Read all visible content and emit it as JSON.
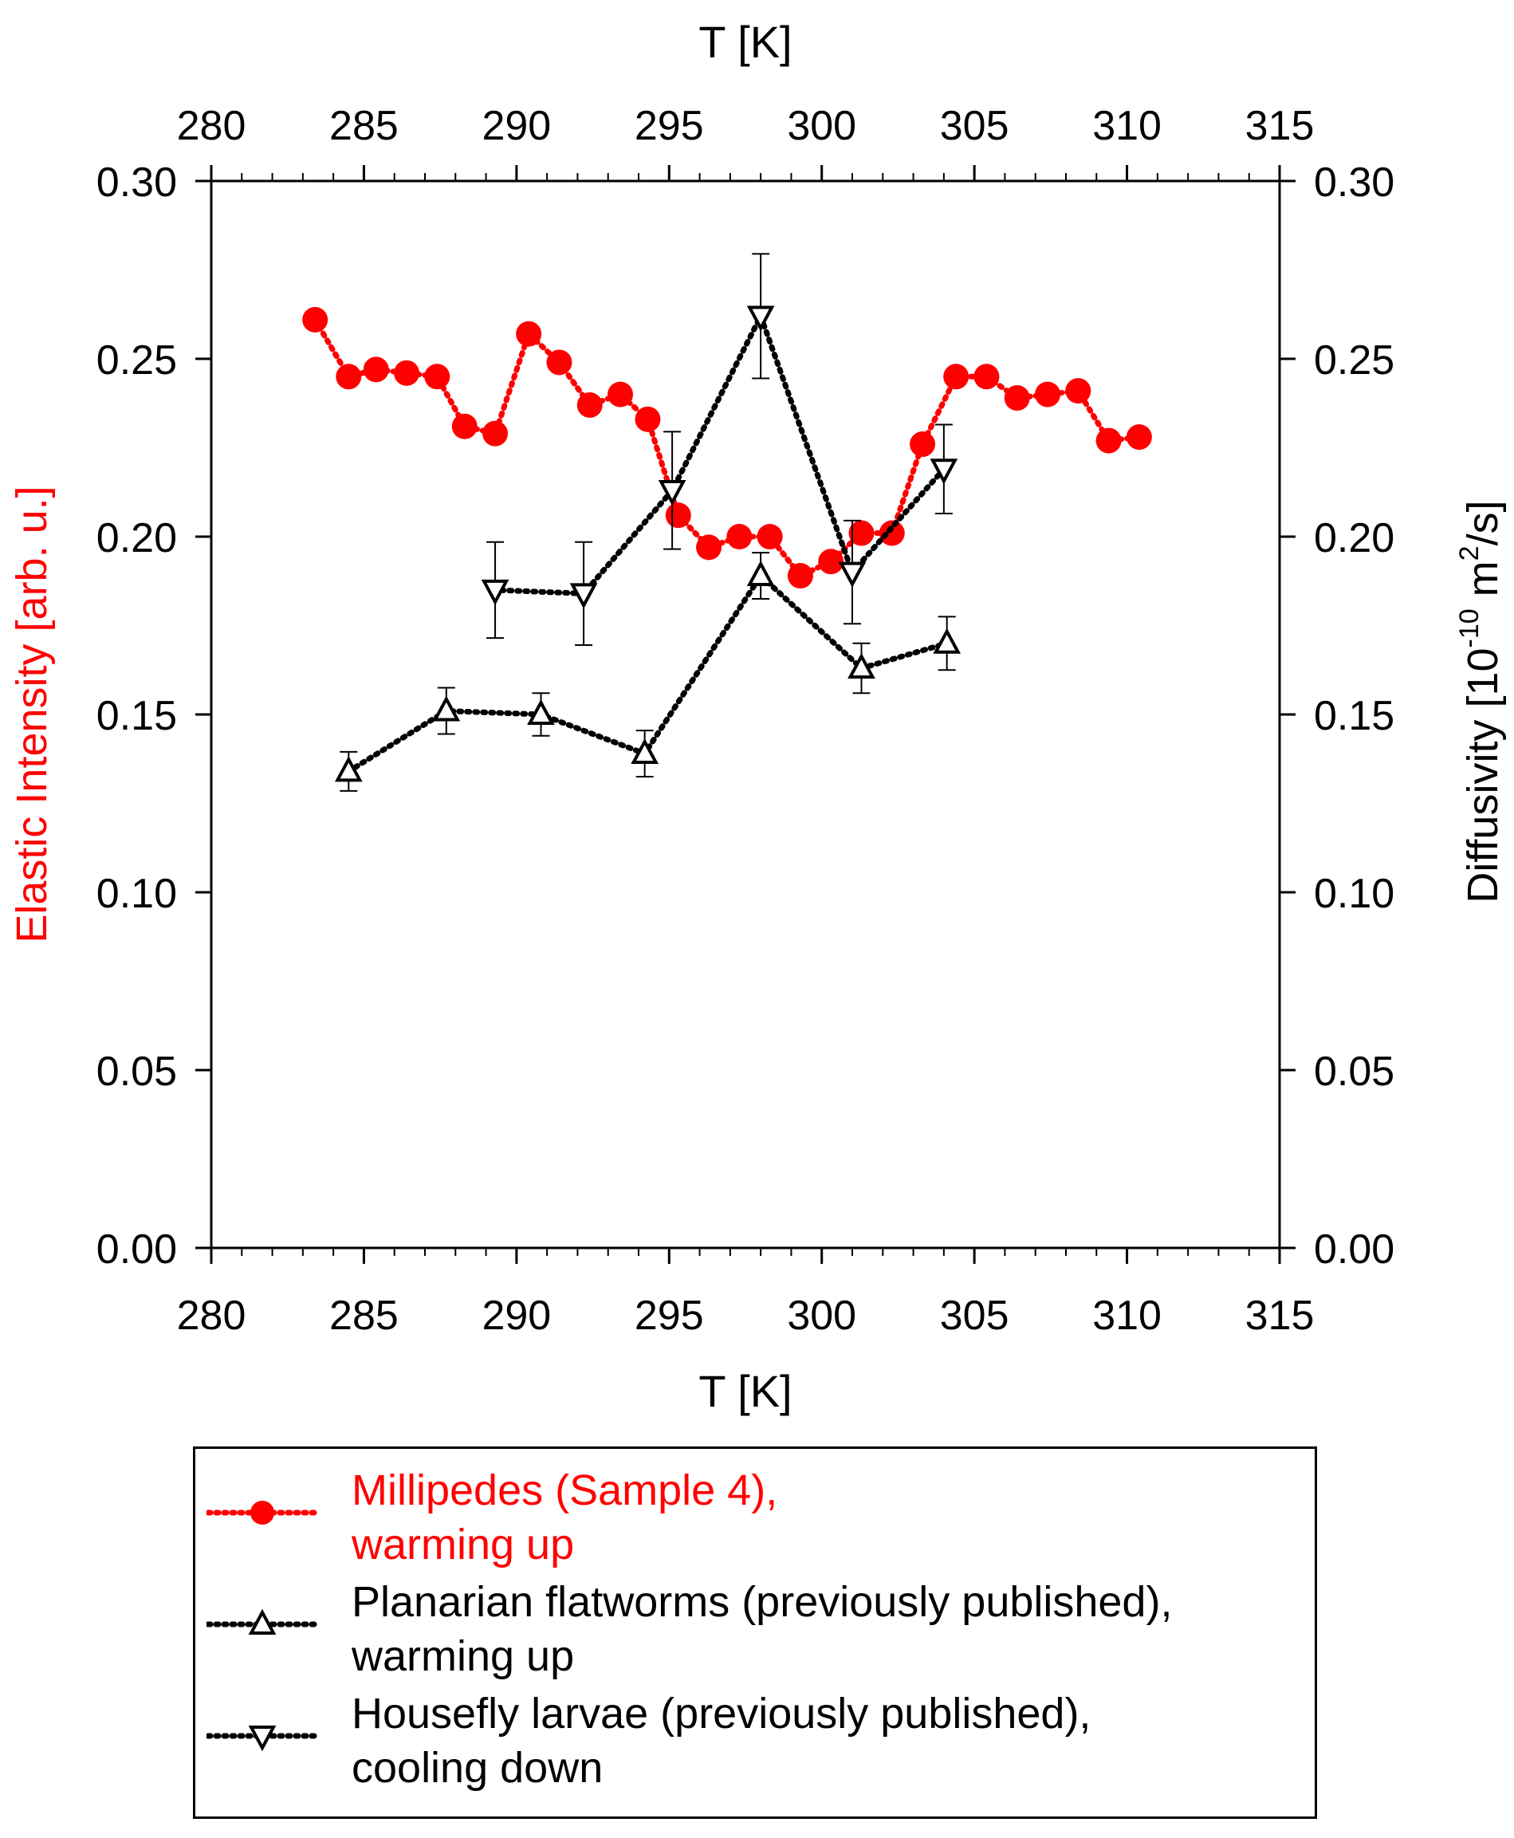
{
  "chart_data": {
    "type": "scatter",
    "x_axis": {
      "label": "T [K]",
      "range": [
        280,
        315
      ],
      "ticks": [
        280,
        285,
        290,
        295,
        300,
        305,
        310,
        315
      ]
    },
    "x2_axis": {
      "label": "T [K]",
      "range": [
        280,
        315
      ],
      "ticks": [
        280,
        285,
        290,
        295,
        300,
        305,
        310,
        315
      ]
    },
    "y_axis": {
      "label": "Elastic Intensity [arb. u.]",
      "color": "#ff0000",
      "range": [
        0,
        0.3
      ],
      "ticks": [
        "0.00",
        "0.05",
        "0.10",
        "0.15",
        "0.20",
        "0.25",
        "0.30"
      ]
    },
    "y2_axis": {
      "label_parts": [
        "Diffusivity [10",
        "-10",
        " m",
        "2",
        "/s]"
      ],
      "range": [
        0,
        0.3
      ],
      "ticks": [
        "0.00",
        "0.05",
        "0.10",
        "0.15",
        "0.20",
        "0.25",
        "0.30"
      ]
    },
    "series": [
      {
        "name": "Millipedes (Sample 4), warming up",
        "legend_lines": [
          "Millipedes (Sample 4),",
          "warming up"
        ],
        "color": "#ff0000",
        "marker": "filled-circle",
        "line": "dotted",
        "axis": "left",
        "connect_order": "sequential",
        "x": [
          283.4,
          284.5,
          285.4,
          286.4,
          287.4,
          288.3,
          289.3,
          290.4,
          291.4,
          292.4,
          293.4,
          294.3,
          295.3,
          296.3,
          297.3,
          298.3,
          299.3,
          300.3,
          301.3,
          302.3,
          303.3,
          304.4,
          305.4,
          306.4,
          307.4,
          308.4,
          309.4,
          310.4
        ],
        "y": [
          0.261,
          0.245,
          0.247,
          0.246,
          0.245,
          0.231,
          0.229,
          0.257,
          0.249,
          0.237,
          0.24,
          0.233,
          0.206,
          0.197,
          0.2,
          0.2,
          0.189,
          0.193,
          0.201,
          0.201,
          0.226,
          0.245,
          0.245,
          0.239,
          0.24,
          0.241,
          0.227,
          0.228
        ]
      },
      {
        "name": "Planarian flatworms (previously published), warming up",
        "legend_lines": [
          "Planarian flatworms (previously published),",
          "warming up"
        ],
        "color": "#000000",
        "marker": "open-triangle-up",
        "line": "dotted",
        "axis": "right",
        "connect_order": "sequential",
        "x": [
          284.5,
          287.7,
          290.8,
          294.2,
          298.0,
          301.3,
          304.1
        ],
        "y": [
          0.134,
          0.151,
          0.15,
          0.139,
          0.189,
          0.163,
          0.17
        ],
        "err": [
          0.0055,
          0.0065,
          0.006,
          0.0065,
          0.0065,
          0.007,
          0.0075
        ]
      },
      {
        "name": "Housefly larvae (previously published), cooling down",
        "legend_lines": [
          "Housefly larvae (previously published),",
          "cooling down"
        ],
        "color": "#000000",
        "marker": "open-triangle-down",
        "line": "dotted",
        "axis": "right",
        "connect_order": "sequential",
        "x": [
          304.0,
          301.0,
          298.0,
          295.1,
          292.2,
          289.3
        ],
        "y": [
          0.219,
          0.19,
          0.262,
          0.213,
          0.184,
          0.185
        ],
        "err": [
          0.0125,
          0.0145,
          0.0175,
          0.0165,
          0.0145,
          0.0135
        ]
      }
    ]
  }
}
